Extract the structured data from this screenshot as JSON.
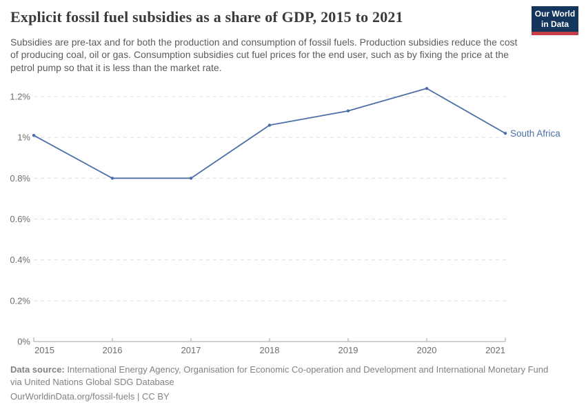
{
  "header": {
    "title": "Explicit fossil fuel subsidies as a share of GDP, 2015 to 2021",
    "subtitle": "Subsidies are pre-tax and for both the production and consumption of fossil fuels. Production subsidies reduce the cost of producing coal, oil or gas. Consumption subsidies cut fuel prices for the end user, such as by fixing the price at the petrol pump so that it is less than the market rate.",
    "logo": {
      "line1": "Our World",
      "line2": "in Data",
      "bg_color": "#14355c",
      "bar_color": "#c43d47"
    }
  },
  "chart_data": {
    "type": "line",
    "title": "Explicit fossil fuel subsidies as a share of GDP, 2015 to 2021",
    "xlabel": "",
    "ylabel": "",
    "x": [
      2015,
      2016,
      2017,
      2018,
      2019,
      2020,
      2021
    ],
    "x_tick_labels": [
      "2015",
      "2016",
      "2017",
      "2018",
      "2019",
      "2020",
      "2021"
    ],
    "series": [
      {
        "name": "South Africa",
        "values": [
          1.01,
          0.8,
          0.8,
          1.06,
          1.13,
          1.24,
          1.02
        ],
        "color": "#4c6ea9"
      }
    ],
    "ylim": [
      0,
      1.3
    ],
    "yticks": [
      {
        "value": 0,
        "label": "0%"
      },
      {
        "value": 0.2,
        "label": "0.2%"
      },
      {
        "value": 0.4,
        "label": "0.4%"
      },
      {
        "value": 0.6,
        "label": "0.6%"
      },
      {
        "value": 0.8,
        "label": "0.8%"
      },
      {
        "value": 1.0,
        "label": "1%"
      },
      {
        "value": 1.2,
        "label": "1.2%"
      }
    ],
    "grid": "horizontal-dashed",
    "legend_position": "end-of-line-label",
    "end_label": "South Africa",
    "colors": {
      "grid": "#dcdcdc",
      "axis": "#a3a3a3",
      "tick_label": "#6e6e6e"
    }
  },
  "footer": {
    "source_label": "Data source:",
    "source_text": "International Energy Agency, Organisation for Economic Co-operation and Development and International Monetary Fund via United Nations Global SDG Database",
    "license_line": "OurWorldinData.org/fossil-fuels | CC BY"
  }
}
